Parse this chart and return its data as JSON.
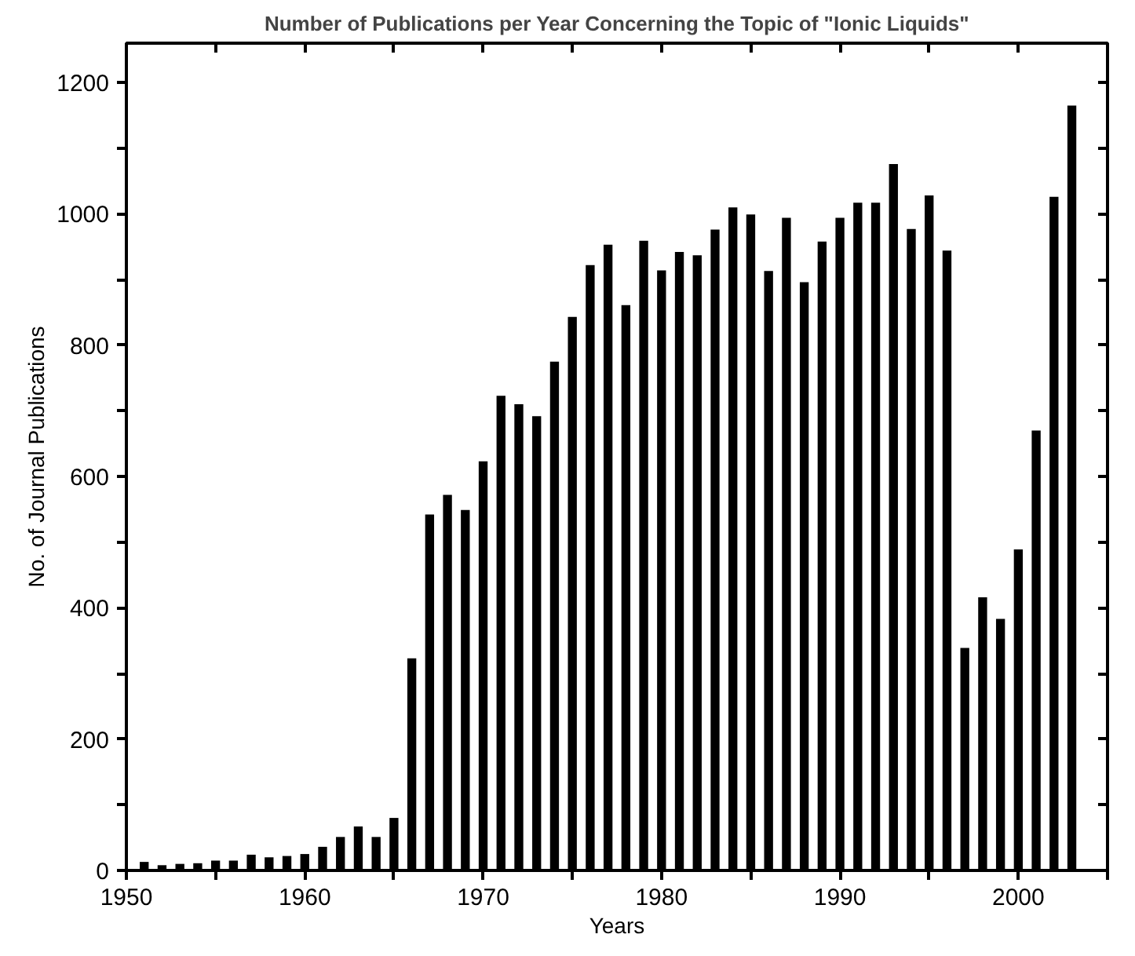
{
  "chart_data": {
    "type": "bar",
    "title": "Number of Publications per Year Concerning the Topic of \"Ionic Liquids\"",
    "xlabel": "Years",
    "ylabel": "No. of Journal Publications",
    "x": [
      1951,
      1952,
      1953,
      1954,
      1955,
      1956,
      1957,
      1958,
      1959,
      1960,
      1961,
      1962,
      1963,
      1964,
      1965,
      1966,
      1967,
      1968,
      1969,
      1970,
      1971,
      1972,
      1973,
      1974,
      1975,
      1976,
      1977,
      1978,
      1979,
      1980,
      1981,
      1982,
      1983,
      1984,
      1985,
      1986,
      1987,
      1988,
      1989,
      1990,
      1991,
      1992,
      1993,
      1994,
      1995,
      1996,
      1997,
      1998,
      1999,
      2000,
      2001,
      2002,
      2003
    ],
    "values": [
      13,
      8,
      10,
      11,
      15,
      15,
      24,
      20,
      22,
      25,
      36,
      51,
      67,
      51,
      80,
      323,
      542,
      572,
      549,
      623,
      723,
      710,
      692,
      775,
      843,
      922,
      953,
      861,
      959,
      914,
      942,
      937,
      976,
      1010,
      999,
      913,
      994,
      896,
      958,
      994,
      1017,
      1017,
      1076,
      977,
      1028,
      944,
      339,
      416,
      383,
      489,
      670,
      1026,
      1165
    ],
    "color": "#000000",
    "xlim": [
      1950,
      2005
    ],
    "xticks": [
      1950,
      {
        "value": 1955,
        "label": null
      },
      1960,
      {
        "value": 1965,
        "label": null
      },
      1970,
      {
        "value": 1975,
        "label": null
      },
      1980,
      {
        "value": 1985,
        "label": null
      },
      1990,
      {
        "value": 1995,
        "label": null
      },
      2000,
      {
        "value": 2005,
        "label": null
      }
    ],
    "ylim": [
      0,
      1260
    ],
    "yticks": [
      0,
      {
        "value": 100,
        "label": null
      },
      200,
      {
        "value": 300,
        "label": null
      },
      400,
      {
        "value": 500,
        "label": null
      },
      600,
      {
        "value": 700,
        "label": null
      },
      800,
      {
        "value": 900,
        "label": null
      },
      1000,
      {
        "value": 1100,
        "label": null
      },
      1200
    ],
    "grid": false
  }
}
